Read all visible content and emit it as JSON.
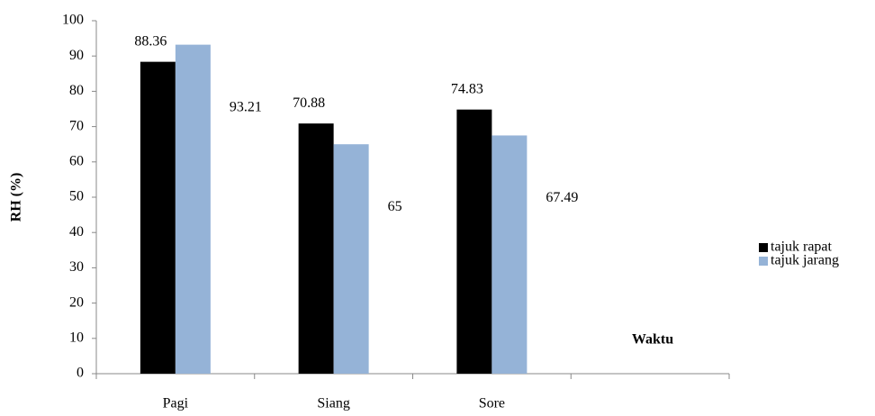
{
  "chart_data": {
    "type": "bar",
    "y_label": "RH (%)",
    "x_label": "Waktu",
    "categories": [
      "Pagi",
      "Siang",
      "Sore",
      null
    ],
    "series": [
      {
        "name": "tajuk rapat",
        "color": "#000000",
        "values": [
          88.36,
          70.88,
          74.83,
          null
        ]
      },
      {
        "name": "tajuk jarang",
        "color": "#95b3d7",
        "values": [
          93.21,
          65,
          67.49,
          null
        ]
      }
    ],
    "ylim": [
      0,
      100
    ],
    "yticks": [
      0,
      10,
      20,
      30,
      40,
      50,
      60,
      70,
      80,
      90,
      100
    ],
    "grid": false,
    "legend": "right"
  }
}
